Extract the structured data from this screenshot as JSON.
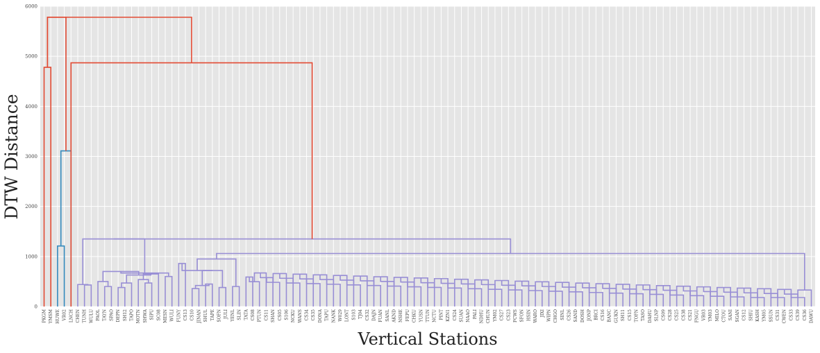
{
  "chart_data": {
    "type": "dendrogram",
    "title": "",
    "xlabel": "Vertical Stations",
    "ylabel": "DTW Distance",
    "ylim": [
      0,
      6000
    ],
    "y_ticks": [
      0,
      1000,
      2000,
      3000,
      4000,
      5000,
      6000
    ],
    "grid": true,
    "background": "#e5e5e5",
    "colors": {
      "top": "#e24a33",
      "cluster1": "#348abd",
      "cluster2": "#988ed5"
    },
    "leaves": [
      "PKGM",
      "YMSM",
      "HUWE",
      "VR02",
      "LNCH",
      "CHEN",
      "TUNH",
      "WULU",
      "PAOL",
      "TAYN",
      "SPAO",
      "DEPN",
      "SH12",
      "TAPO",
      "MOTN",
      "SHWA",
      "SIPU",
      "SC08",
      "MESN",
      "WULI",
      "FUNY",
      "CS13",
      "CS10",
      "JINAN",
      "SHUL",
      "TAPE",
      "SOFN",
      "JULI",
      "YENL",
      "SLIN",
      "TATA",
      "CS08",
      "PTUN",
      "CS11",
      "SHAN",
      "CS05",
      "S106",
      "NCKU",
      "WANS",
      "CS34",
      "CS35",
      "DONA",
      "TAPU",
      "NANK",
      "W029",
      "LONT",
      "S103",
      "TJ04",
      "CS32",
      "DAJN",
      "FUAN",
      "SANL",
      "AKND",
      "NSHE",
      "FEPU",
      "CHKU",
      "YUSN",
      "TTUN",
      "NCTU",
      "PINT",
      "KZN1",
      "CS24",
      "SUAN",
      "NAAO",
      "PALI",
      "NDHU",
      "CHUN",
      "YM02",
      "CS27",
      "CS23",
      "FCWS",
      "SFON",
      "HSIN",
      "WARO",
      "JIXI",
      "WIPN",
      "CHGO",
      "SINL",
      "CS26",
      "SAND",
      "DOSH",
      "JONP",
      "BRCI",
      "CS16",
      "BANC",
      "GUKN",
      "SH11",
      "CS15",
      "TOFN",
      "TASO",
      "DAHU",
      "SLNP",
      "CS09",
      "CS28",
      "CS25",
      "CS38",
      "CS21",
      "FNGU",
      "VR03",
      "YM03",
      "MILO",
      "CTOU",
      "SANI",
      "SGAN",
      "CS12",
      "SHIU",
      "KASH",
      "YM05",
      "SSUN",
      "CS31",
      "CWEN",
      "CS33",
      "CS39",
      "CS36",
      "DAWU"
    ],
    "merges": [
      {
        "nodes": [
          0,
          1
        ],
        "height": 4780,
        "color": "top"
      },
      {
        "nodes": [
          2,
          3
        ],
        "height": 1210,
        "color": "cluster1"
      },
      {
        "nodes": [
          "n",
          1
        ],
        "height": 3110,
        "color": "cluster1",
        "children": [
          2,
          "m1"
        ]
      },
      {
        "nodes": [
          "top"
        ],
        "height": 5780,
        "color": "top"
      },
      {
        "nodes": [
          "c2"
        ],
        "height": 4870,
        "color": "top"
      },
      {
        "nodes": [
          "c2-root"
        ],
        "height": 1350,
        "color": "cluster2"
      },
      {
        "nodes": [
          "c2-mid"
        ],
        "height": 1060,
        "color": "cluster2"
      },
      {
        "nodes": [
          "c2-b"
        ],
        "height": 950,
        "color": "cluster2"
      }
    ]
  }
}
